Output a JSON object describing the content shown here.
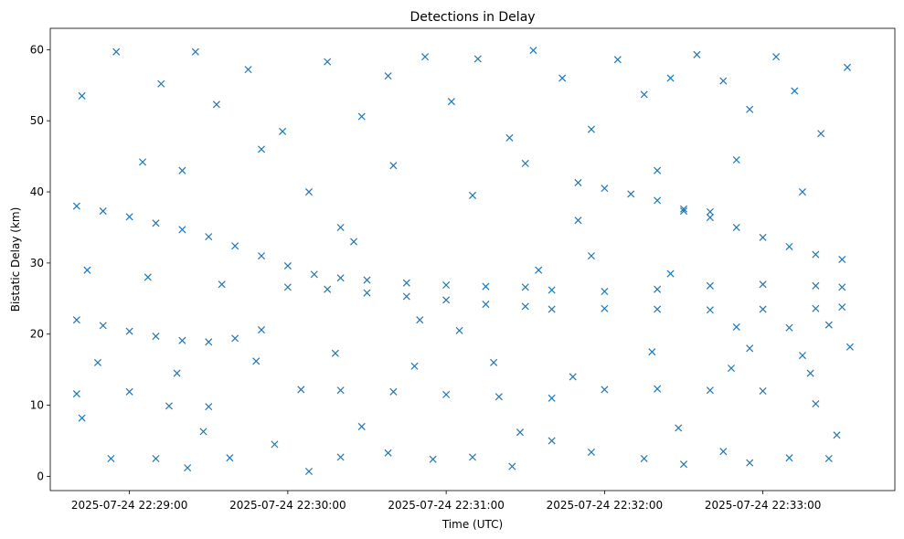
{
  "chart_data": {
    "type": "scatter",
    "title": "Detections in Delay",
    "xlabel": "Time (UTC)",
    "ylabel": "Bistatic Delay (km)",
    "marker": "x",
    "color": "#1f77b4",
    "grid": false,
    "xlim": [
      "2025-07-24 22:28:30",
      "2025-07-24 22:33:50"
    ],
    "ylim": [
      -2,
      63
    ],
    "x_ticks": [
      {
        "value": "2025-07-24 22:29:00",
        "label": "2025-07-24 22:29:00"
      },
      {
        "value": "2025-07-24 22:30:00",
        "label": "2025-07-24 22:30:00"
      },
      {
        "value": "2025-07-24 22:31:00",
        "label": "2025-07-24 22:31:00"
      },
      {
        "value": "2025-07-24 22:32:00",
        "label": "2025-07-24 22:32:00"
      },
      {
        "value": "2025-07-24 22:33:00",
        "label": "2025-07-24 22:33:00"
      }
    ],
    "y_ticks": [
      0,
      10,
      20,
      30,
      40,
      50,
      60
    ],
    "series": [
      {
        "name": "",
        "points": [
          [
            "2025-07-24 22:28:40",
            38.0
          ],
          [
            "2025-07-24 22:28:50",
            37.3
          ],
          [
            "2025-07-24 22:29:00",
            36.5
          ],
          [
            "2025-07-24 22:29:10",
            35.6
          ],
          [
            "2025-07-24 22:29:20",
            34.7
          ],
          [
            "2025-07-24 22:29:30",
            33.7
          ],
          [
            "2025-07-24 22:29:40",
            32.4
          ],
          [
            "2025-07-24 22:29:50",
            31.0
          ],
          [
            "2025-07-24 22:30:00",
            29.6
          ],
          [
            "2025-07-24 22:30:10",
            28.4
          ],
          [
            "2025-07-24 22:30:20",
            27.9
          ],
          [
            "2025-07-24 22:30:30",
            27.6
          ],
          [
            "2025-07-24 22:30:45",
            27.2
          ],
          [
            "2025-07-24 22:31:00",
            26.9
          ],
          [
            "2025-07-24 22:31:15",
            26.7
          ],
          [
            "2025-07-24 22:31:30",
            26.6
          ],
          [
            "2025-07-24 22:28:40",
            22.0
          ],
          [
            "2025-07-24 22:28:50",
            21.2
          ],
          [
            "2025-07-24 22:29:00",
            20.4
          ],
          [
            "2025-07-24 22:29:10",
            19.7
          ],
          [
            "2025-07-24 22:29:20",
            19.1
          ],
          [
            "2025-07-24 22:29:30",
            18.9
          ],
          [
            "2025-07-24 22:29:40",
            19.4
          ],
          [
            "2025-07-24 22:29:50",
            20.6
          ],
          [
            "2025-07-24 22:30:00",
            26.6
          ],
          [
            "2025-07-24 22:30:15",
            26.3
          ],
          [
            "2025-07-24 22:30:30",
            25.8
          ],
          [
            "2025-07-24 22:30:45",
            25.3
          ],
          [
            "2025-07-24 22:31:00",
            24.8
          ],
          [
            "2025-07-24 22:31:15",
            24.2
          ],
          [
            "2025-07-24 22:31:30",
            23.9
          ],
          [
            "2025-07-24 22:31:50",
            41.3
          ],
          [
            "2025-07-24 22:32:00",
            40.5
          ],
          [
            "2025-07-24 22:32:10",
            39.7
          ],
          [
            "2025-07-24 22:32:20",
            38.8
          ],
          [
            "2025-07-24 22:32:30",
            37.6
          ],
          [
            "2025-07-24 22:32:40",
            36.4
          ],
          [
            "2025-07-24 22:32:50",
            35.0
          ],
          [
            "2025-07-24 22:33:00",
            33.6
          ],
          [
            "2025-07-24 22:33:10",
            32.3
          ],
          [
            "2025-07-24 22:33:20",
            31.2
          ],
          [
            "2025-07-24 22:33:30",
            30.5
          ],
          [
            "2025-07-24 22:32:30",
            37.3
          ],
          [
            "2025-07-24 22:32:40",
            37.2
          ],
          [
            "2025-07-24 22:31:40",
            26.2
          ],
          [
            "2025-07-24 22:32:00",
            26.0
          ],
          [
            "2025-07-24 22:32:20",
            26.3
          ],
          [
            "2025-07-24 22:32:40",
            26.8
          ],
          [
            "2025-07-24 22:33:00",
            27.0
          ],
          [
            "2025-07-24 22:33:20",
            26.8
          ],
          [
            "2025-07-24 22:33:30",
            26.6
          ],
          [
            "2025-07-24 22:31:40",
            23.5
          ],
          [
            "2025-07-24 22:32:00",
            23.6
          ],
          [
            "2025-07-24 22:32:20",
            23.5
          ],
          [
            "2025-07-24 22:32:40",
            23.4
          ],
          [
            "2025-07-24 22:33:00",
            23.5
          ],
          [
            "2025-07-24 22:33:20",
            23.6
          ],
          [
            "2025-07-24 22:33:30",
            23.8
          ],
          [
            "2025-07-24 22:32:50",
            21.0
          ],
          [
            "2025-07-24 22:33:10",
            20.9
          ],
          [
            "2025-07-24 22:33:25",
            21.3
          ],
          [
            "2025-07-24 22:28:40",
            11.6
          ],
          [
            "2025-07-24 22:29:00",
            11.9
          ],
          [
            "2025-07-24 22:29:15",
            9.9
          ],
          [
            "2025-07-24 22:29:30",
            9.8
          ],
          [
            "2025-07-24 22:30:05",
            12.2
          ],
          [
            "2025-07-24 22:30:20",
            12.1
          ],
          [
            "2025-07-24 22:30:40",
            11.9
          ],
          [
            "2025-07-24 22:31:00",
            11.5
          ],
          [
            "2025-07-24 22:31:20",
            11.2
          ],
          [
            "2025-07-24 22:31:40",
            11.0
          ],
          [
            "2025-07-24 22:32:00",
            12.2
          ],
          [
            "2025-07-24 22:32:20",
            12.3
          ],
          [
            "2025-07-24 22:32:40",
            12.1
          ],
          [
            "2025-07-24 22:33:00",
            12.0
          ],
          [
            "2025-07-24 22:33:20",
            10.2
          ],
          [
            "2025-07-24 22:28:42",
            53.5
          ],
          [
            "2025-07-24 22:28:55",
            59.7
          ],
          [
            "2025-07-24 22:29:05",
            44.2
          ],
          [
            "2025-07-24 22:29:12",
            55.2
          ],
          [
            "2025-07-24 22:29:25",
            59.7
          ],
          [
            "2025-07-24 22:29:33",
            52.3
          ],
          [
            "2025-07-24 22:29:45",
            57.2
          ],
          [
            "2025-07-24 22:29:58",
            48.5
          ],
          [
            "2025-07-24 22:30:08",
            40.0
          ],
          [
            "2025-07-24 22:30:15",
            58.3
          ],
          [
            "2025-07-24 22:30:28",
            50.6
          ],
          [
            "2025-07-24 22:30:38",
            56.3
          ],
          [
            "2025-07-24 22:30:52",
            59.0
          ],
          [
            "2025-07-24 22:31:02",
            52.7
          ],
          [
            "2025-07-24 22:31:12",
            58.7
          ],
          [
            "2025-07-24 22:31:24",
            47.6
          ],
          [
            "2025-07-24 22:31:33",
            59.9
          ],
          [
            "2025-07-24 22:31:44",
            56.0
          ],
          [
            "2025-07-24 22:31:55",
            48.8
          ],
          [
            "2025-07-24 22:32:05",
            58.6
          ],
          [
            "2025-07-24 22:32:15",
            53.7
          ],
          [
            "2025-07-24 22:32:25",
            56.0
          ],
          [
            "2025-07-24 22:32:35",
            59.3
          ],
          [
            "2025-07-24 22:32:45",
            55.6
          ],
          [
            "2025-07-24 22:32:55",
            51.6
          ],
          [
            "2025-07-24 22:33:05",
            59.0
          ],
          [
            "2025-07-24 22:33:12",
            54.2
          ],
          [
            "2025-07-24 22:33:22",
            48.2
          ],
          [
            "2025-07-24 22:33:32",
            57.5
          ],
          [
            "2025-07-24 22:29:20",
            43.0
          ],
          [
            "2025-07-24 22:29:50",
            46.0
          ],
          [
            "2025-07-24 22:30:20",
            35.0
          ],
          [
            "2025-07-24 22:30:40",
            43.7
          ],
          [
            "2025-07-24 22:31:10",
            39.5
          ],
          [
            "2025-07-24 22:31:30",
            44.0
          ],
          [
            "2025-07-24 22:31:50",
            36.0
          ],
          [
            "2025-07-24 22:32:20",
            43.0
          ],
          [
            "2025-07-24 22:32:50",
            44.5
          ],
          [
            "2025-07-24 22:33:15",
            40.0
          ],
          [
            "2025-07-24 22:28:44",
            29.0
          ],
          [
            "2025-07-24 22:29:07",
            28.0
          ],
          [
            "2025-07-24 22:29:35",
            27.0
          ],
          [
            "2025-07-24 22:30:25",
            33.0
          ],
          [
            "2025-07-24 22:30:50",
            22.0
          ],
          [
            "2025-07-24 22:31:05",
            20.5
          ],
          [
            "2025-07-24 22:31:35",
            29.0
          ],
          [
            "2025-07-24 22:31:55",
            31.0
          ],
          [
            "2025-07-24 22:32:25",
            28.5
          ],
          [
            "2025-07-24 22:32:55",
            18.0
          ],
          [
            "2025-07-24 22:33:15",
            17.0
          ],
          [
            "2025-07-24 22:33:33",
            18.2
          ],
          [
            "2025-07-24 22:28:48",
            16.0
          ],
          [
            "2025-07-24 22:29:18",
            14.5
          ],
          [
            "2025-07-24 22:29:48",
            16.2
          ],
          [
            "2025-07-24 22:30:18",
            17.3
          ],
          [
            "2025-07-24 22:30:48",
            15.5
          ],
          [
            "2025-07-24 22:31:18",
            16.0
          ],
          [
            "2025-07-24 22:31:48",
            14.0
          ],
          [
            "2025-07-24 22:32:18",
            17.5
          ],
          [
            "2025-07-24 22:32:48",
            15.2
          ],
          [
            "2025-07-24 22:33:18",
            14.5
          ],
          [
            "2025-07-24 22:28:42",
            8.2
          ],
          [
            "2025-07-24 22:28:53",
            2.5
          ],
          [
            "2025-07-24 22:29:10",
            2.5
          ],
          [
            "2025-07-24 22:29:22",
            1.2
          ],
          [
            "2025-07-24 22:29:38",
            2.6
          ],
          [
            "2025-07-24 22:29:55",
            4.5
          ],
          [
            "2025-07-24 22:30:08",
            0.7
          ],
          [
            "2025-07-24 22:30:20",
            2.7
          ],
          [
            "2025-07-24 22:30:38",
            3.3
          ],
          [
            "2025-07-24 22:30:55",
            2.4
          ],
          [
            "2025-07-24 22:31:10",
            2.7
          ],
          [
            "2025-07-24 22:31:25",
            1.4
          ],
          [
            "2025-07-24 22:31:40",
            5.0
          ],
          [
            "2025-07-24 22:31:55",
            3.4
          ],
          [
            "2025-07-24 22:32:15",
            2.5
          ],
          [
            "2025-07-24 22:32:30",
            1.7
          ],
          [
            "2025-07-24 22:32:45",
            3.5
          ],
          [
            "2025-07-24 22:32:55",
            1.9
          ],
          [
            "2025-07-24 22:33:10",
            2.6
          ],
          [
            "2025-07-24 22:33:25",
            2.5
          ],
          [
            "2025-07-24 22:29:28",
            6.3
          ],
          [
            "2025-07-24 22:30:28",
            7.0
          ],
          [
            "2025-07-24 22:31:28",
            6.2
          ],
          [
            "2025-07-24 22:32:28",
            6.8
          ],
          [
            "2025-07-24 22:33:28",
            5.8
          ]
        ]
      }
    ]
  }
}
